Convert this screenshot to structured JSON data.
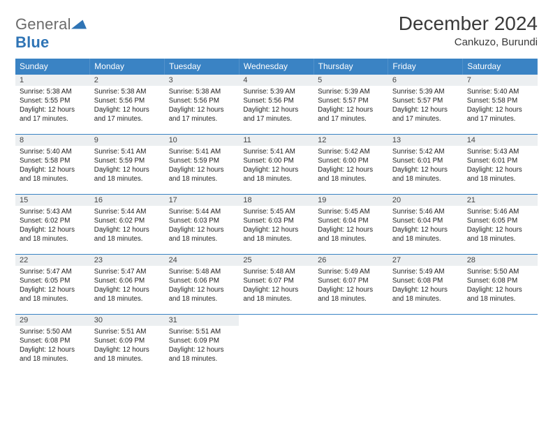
{
  "brand": {
    "word1": "General",
    "word2": "Blue"
  },
  "title": "December 2024",
  "location": "Cankuzo, Burundi",
  "colors": {
    "header_bg": "#3a83c4",
    "header_fg": "#ffffff",
    "daynum_bg": "#eceff1",
    "rule": "#3a83c4",
    "text": "#222222",
    "logo_gray": "#6b6b6b",
    "logo_blue": "#2f74b5",
    "page_bg": "#ffffff"
  },
  "weekdays": [
    "Sunday",
    "Monday",
    "Tuesday",
    "Wednesday",
    "Thursday",
    "Friday",
    "Saturday"
  ],
  "layout": {
    "first_weekday_index": 0,
    "days_in_month": 31,
    "rows": 5,
    "cols": 7
  },
  "days": [
    {
      "n": 1,
      "sunrise": "5:38 AM",
      "sunset": "5:55 PM",
      "daylight": "12 hours and 17 minutes."
    },
    {
      "n": 2,
      "sunrise": "5:38 AM",
      "sunset": "5:56 PM",
      "daylight": "12 hours and 17 minutes."
    },
    {
      "n": 3,
      "sunrise": "5:38 AM",
      "sunset": "5:56 PM",
      "daylight": "12 hours and 17 minutes."
    },
    {
      "n": 4,
      "sunrise": "5:39 AM",
      "sunset": "5:56 PM",
      "daylight": "12 hours and 17 minutes."
    },
    {
      "n": 5,
      "sunrise": "5:39 AM",
      "sunset": "5:57 PM",
      "daylight": "12 hours and 17 minutes."
    },
    {
      "n": 6,
      "sunrise": "5:39 AM",
      "sunset": "5:57 PM",
      "daylight": "12 hours and 17 minutes."
    },
    {
      "n": 7,
      "sunrise": "5:40 AM",
      "sunset": "5:58 PM",
      "daylight": "12 hours and 17 minutes."
    },
    {
      "n": 8,
      "sunrise": "5:40 AM",
      "sunset": "5:58 PM",
      "daylight": "12 hours and 18 minutes."
    },
    {
      "n": 9,
      "sunrise": "5:41 AM",
      "sunset": "5:59 PM",
      "daylight": "12 hours and 18 minutes."
    },
    {
      "n": 10,
      "sunrise": "5:41 AM",
      "sunset": "5:59 PM",
      "daylight": "12 hours and 18 minutes."
    },
    {
      "n": 11,
      "sunrise": "5:41 AM",
      "sunset": "6:00 PM",
      "daylight": "12 hours and 18 minutes."
    },
    {
      "n": 12,
      "sunrise": "5:42 AM",
      "sunset": "6:00 PM",
      "daylight": "12 hours and 18 minutes."
    },
    {
      "n": 13,
      "sunrise": "5:42 AM",
      "sunset": "6:01 PM",
      "daylight": "12 hours and 18 minutes."
    },
    {
      "n": 14,
      "sunrise": "5:43 AM",
      "sunset": "6:01 PM",
      "daylight": "12 hours and 18 minutes."
    },
    {
      "n": 15,
      "sunrise": "5:43 AM",
      "sunset": "6:02 PM",
      "daylight": "12 hours and 18 minutes."
    },
    {
      "n": 16,
      "sunrise": "5:44 AM",
      "sunset": "6:02 PM",
      "daylight": "12 hours and 18 minutes."
    },
    {
      "n": 17,
      "sunrise": "5:44 AM",
      "sunset": "6:03 PM",
      "daylight": "12 hours and 18 minutes."
    },
    {
      "n": 18,
      "sunrise": "5:45 AM",
      "sunset": "6:03 PM",
      "daylight": "12 hours and 18 minutes."
    },
    {
      "n": 19,
      "sunrise": "5:45 AM",
      "sunset": "6:04 PM",
      "daylight": "12 hours and 18 minutes."
    },
    {
      "n": 20,
      "sunrise": "5:46 AM",
      "sunset": "6:04 PM",
      "daylight": "12 hours and 18 minutes."
    },
    {
      "n": 21,
      "sunrise": "5:46 AM",
      "sunset": "6:05 PM",
      "daylight": "12 hours and 18 minutes."
    },
    {
      "n": 22,
      "sunrise": "5:47 AM",
      "sunset": "6:05 PM",
      "daylight": "12 hours and 18 minutes."
    },
    {
      "n": 23,
      "sunrise": "5:47 AM",
      "sunset": "6:06 PM",
      "daylight": "12 hours and 18 minutes."
    },
    {
      "n": 24,
      "sunrise": "5:48 AM",
      "sunset": "6:06 PM",
      "daylight": "12 hours and 18 minutes."
    },
    {
      "n": 25,
      "sunrise": "5:48 AM",
      "sunset": "6:07 PM",
      "daylight": "12 hours and 18 minutes."
    },
    {
      "n": 26,
      "sunrise": "5:49 AM",
      "sunset": "6:07 PM",
      "daylight": "12 hours and 18 minutes."
    },
    {
      "n": 27,
      "sunrise": "5:49 AM",
      "sunset": "6:08 PM",
      "daylight": "12 hours and 18 minutes."
    },
    {
      "n": 28,
      "sunrise": "5:50 AM",
      "sunset": "6:08 PM",
      "daylight": "12 hours and 18 minutes."
    },
    {
      "n": 29,
      "sunrise": "5:50 AM",
      "sunset": "6:08 PM",
      "daylight": "12 hours and 18 minutes."
    },
    {
      "n": 30,
      "sunrise": "5:51 AM",
      "sunset": "6:09 PM",
      "daylight": "12 hours and 18 minutes."
    },
    {
      "n": 31,
      "sunrise": "5:51 AM",
      "sunset": "6:09 PM",
      "daylight": "12 hours and 18 minutes."
    }
  ],
  "labels": {
    "sunrise": "Sunrise:",
    "sunset": "Sunset:",
    "daylight": "Daylight:"
  }
}
